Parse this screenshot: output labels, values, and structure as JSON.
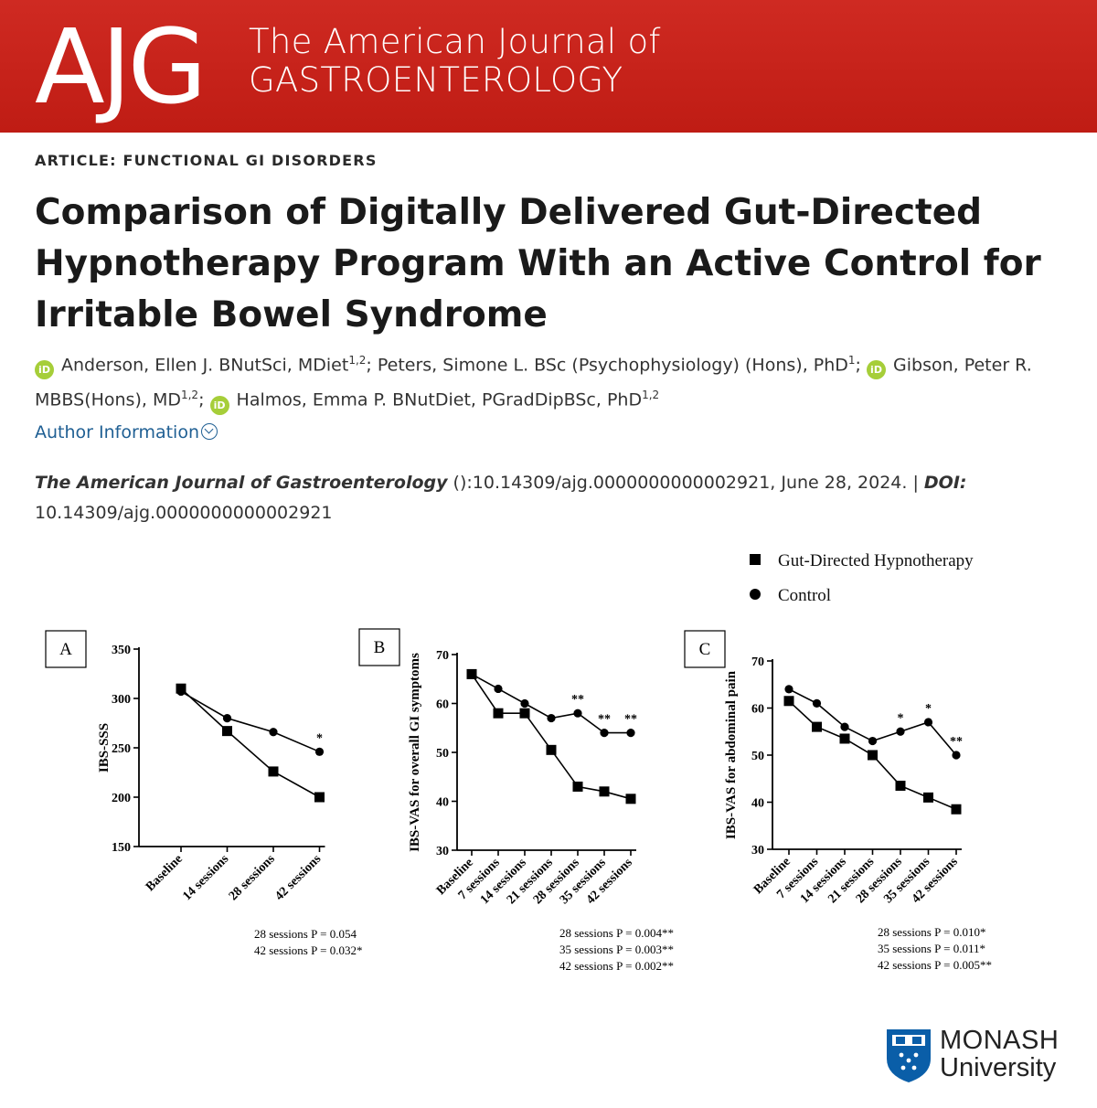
{
  "header": {
    "logo_text": "AJG",
    "journal_line1": "The American Journal of",
    "journal_line2": "GASTROENTEROLOGY"
  },
  "article": {
    "type": "ARTICLE: FUNCTIONAL GI DISORDERS",
    "title": "Comparison of Digitally Delivered Gut-Directed Hypnotherapy Program With an Active Control for Irritable Bowel Syndrome",
    "authors": [
      {
        "name": "Anderson, Ellen J. BNutSci, MDiet",
        "sup": "1,2",
        "orcid": true,
        "sep": "; "
      },
      {
        "name": "Peters, Simone L. BSc (Psychophysiology) (Hons), PhD",
        "sup": "1",
        "orcid": false,
        "sep": "; "
      },
      {
        "name": "Gibson, Peter R. MBBS(Hons), MD",
        "sup": "1,2",
        "orcid": true,
        "sep": "; "
      },
      {
        "name": "Halmos, Emma P. BNutDiet, PGradDipBSc, PhD",
        "sup": "1,2",
        "orcid": true,
        "sep": ""
      }
    ],
    "orcid_label": "iD",
    "author_info_label": "Author Information",
    "citation": {
      "journal": "The American Journal of Gastroenterology",
      "details": " ():10.14309/ajg.0000000000002921, June 28, 2024. | ",
      "doi_label": "DOI:",
      "doi": " 10.14309/ajg.0000000000002921"
    }
  },
  "chart_data": [
    {
      "type": "line",
      "panel": "A",
      "ylabel": "IBS-SSS",
      "ylim": [
        150,
        350
      ],
      "yticks": [
        150,
        200,
        250,
        300,
        350
      ],
      "categories": [
        "Baseline",
        "14 sessions",
        "28 sessions",
        "42 sessions"
      ],
      "series": [
        {
          "name": "Gut-Directed Hypnotherapy",
          "marker": "square",
          "values": [
            310,
            267,
            226,
            200
          ]
        },
        {
          "name": "Control",
          "marker": "circle",
          "values": [
            307,
            280,
            266,
            246
          ]
        }
      ],
      "annotations": [
        {
          "category": "42 sessions",
          "text": "*"
        }
      ],
      "pvalues": [
        "28 sessions P = 0.054",
        "42 sessions P = 0.032*"
      ]
    },
    {
      "type": "line",
      "panel": "B",
      "ylabel": "IBS-VAS for overall GI symptoms",
      "ylim": [
        30,
        70
      ],
      "yticks": [
        30,
        40,
        50,
        60,
        70
      ],
      "categories": [
        "Baseline",
        "7 sessions",
        "14 sessions",
        "21 sessions",
        "28 sessions",
        "35 sessions",
        "42 sessions"
      ],
      "series": [
        {
          "name": "Gut-Directed Hypnotherapy",
          "marker": "square",
          "values": [
            66,
            58,
            58,
            50.5,
            43,
            42,
            40.5
          ]
        },
        {
          "name": "Control",
          "marker": "circle",
          "values": [
            66,
            63,
            60,
            57,
            58,
            54,
            54
          ]
        }
      ],
      "annotations": [
        {
          "category": "28 sessions",
          "text": "**"
        },
        {
          "category": "35 sessions",
          "text": "**"
        },
        {
          "category": "42 sessions",
          "text": "**"
        }
      ],
      "pvalues": [
        "28 sessions P = 0.004**",
        "35 sessions P = 0.003**",
        "42 sessions P = 0.002**"
      ]
    },
    {
      "type": "line",
      "panel": "C",
      "ylabel": "IBS-VAS for abdominal pain",
      "ylim": [
        30,
        70
      ],
      "yticks": [
        30,
        40,
        50,
        60,
        70
      ],
      "categories": [
        "Baseline",
        "7 sessions",
        "14 sessions",
        "21 sessions",
        "28 sessions",
        "35 sessions",
        "42 sessions"
      ],
      "series": [
        {
          "name": "Gut-Directed Hypnotherapy",
          "marker": "square",
          "values": [
            61.5,
            56,
            53.5,
            50,
            43.5,
            41,
            38.5
          ]
        },
        {
          "name": "Control",
          "marker": "circle",
          "values": [
            64,
            61,
            56,
            53,
            55,
            57,
            50
          ]
        }
      ],
      "annotations": [
        {
          "category": "28 sessions",
          "text": "*"
        },
        {
          "category": "35 sessions",
          "text": "*"
        },
        {
          "category": "42 sessions",
          "text": "**"
        }
      ],
      "pvalues": [
        "28 sessions P = 0.010*",
        "35 sessions P = 0.011*",
        "42 sessions P = 0.005**"
      ]
    }
  ],
  "legend": {
    "placement": "top-right",
    "items": [
      {
        "label": "Gut-Directed Hypnotherapy",
        "marker": "square"
      },
      {
        "label": "Control",
        "marker": "circle"
      }
    ]
  },
  "footer": {
    "logo_name": "MONASH",
    "logo_sub": "University",
    "logo_icon": "monash-crest-icon"
  },
  "colors": {
    "banner": "#c4201a",
    "link": "#1f5f93",
    "orcid": "#a6ce39",
    "monash_crest": "#0a5ea8"
  }
}
